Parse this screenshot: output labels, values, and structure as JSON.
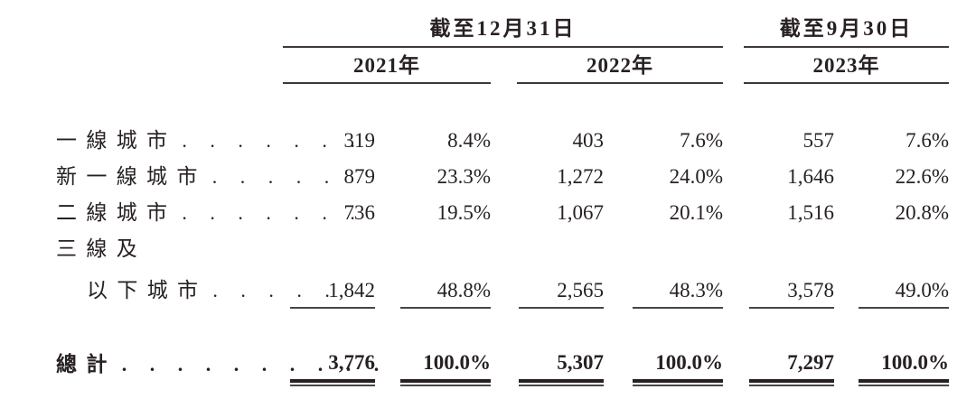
{
  "table": {
    "header": {
      "period_dec31": "截至12月31日",
      "period_sep30": "截至9月30日",
      "year_2021": "2021年",
      "year_2022": "2022年",
      "year_2023": "2023年"
    },
    "rows": [
      {
        "label": "一線城市",
        "dots": ". . . . . . .",
        "v2021": "319",
        "p2021": "8.4%",
        "v2022": "403",
        "p2022": "7.6%",
        "v2023": "557",
        "p2023": "7.6%"
      },
      {
        "label": "新一線城市",
        "dots": ". . . . .",
        "v2021": "879",
        "p2021": "23.3%",
        "v2022": "1,272",
        "p2022": "24.0%",
        "v2023": "1,646",
        "p2023": "22.6%"
      },
      {
        "label": "二線城市",
        "dots": ". . . . . . .",
        "v2021": "736",
        "p2021": "19.5%",
        "v2022": "1,067",
        "p2022": "20.1%",
        "v2023": "1,516",
        "p2023": "20.8%"
      },
      {
        "label_line1": "三線及",
        "label": "以下城市",
        "dots": ". . . . .",
        "v2021": "1,842",
        "p2021": "48.8%",
        "v2022": "2,565",
        "p2022": "48.3%",
        "v2023": "3,578",
        "p2023": "49.0%"
      }
    ],
    "total": {
      "label": "總計",
      "dots": ". . . . . . . . . .",
      "v2021": "3,776",
      "p2021": "100.0%",
      "v2022": "5,307",
      "p2022": "100.0%",
      "v2023": "7,297",
      "p2023": "100.0%"
    }
  },
  "colors": {
    "text": "#272122",
    "thin_rule": "#4a4445",
    "thick_rule": "#272122"
  }
}
